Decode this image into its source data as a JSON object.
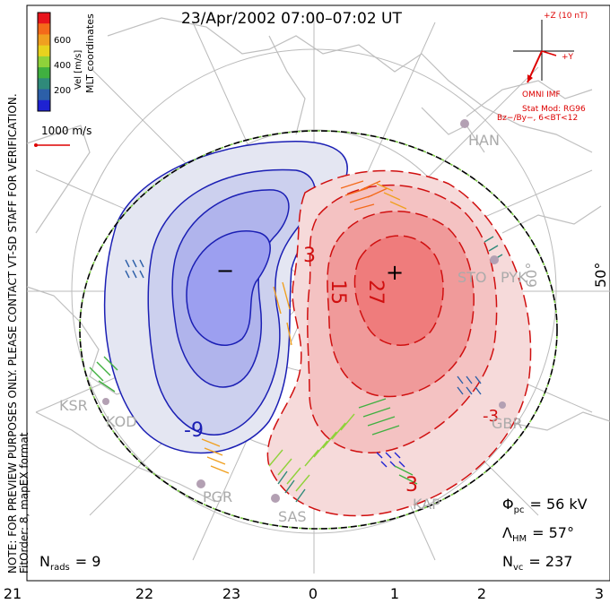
{
  "title": "23/Apr/2002 07:00–07:02 UT",
  "side_note": {
    "line1": "NOTE: FOR PREVIEW PURPOSES ONLY. PLEASE CONTACT VT-SD STAFF FOR VERIFICATION.",
    "line2": "FitOrder: 8, mapEX format"
  },
  "mlt_label": "MLT coordinates",
  "color_bar": {
    "label": "Vel [m/s]",
    "ticks": [
      "600",
      "400",
      "200"
    ],
    "colors": [
      "#e8141c",
      "#f46a1a",
      "#f0a020",
      "#e8d21e",
      "#8fd23a",
      "#40b040",
      "#2f8a7a",
      "#2c5fa8",
      "#1e22d2"
    ]
  },
  "velocity_scale": {
    "label": "1000 m/s"
  },
  "imf": {
    "scale_label": "+Z (10 nT)",
    "y_label": "+Y",
    "source": "OMNI IMF",
    "model_line1": "Stat Mod: RG96",
    "model_line2": "Bz−/By−, 6<BT<12"
  },
  "latitude_label": "50°",
  "latitude_label_2": "60°",
  "stations": [
    "HAN",
    "STO",
    "PYK",
    "KSR",
    "KOD",
    "PGR",
    "SAS",
    "KAP",
    "GBR"
  ],
  "contours": {
    "neg_labels": [
      "−",
      "-9"
    ],
    "pos_labels": [
      "+",
      "3",
      "15",
      "27",
      "3",
      "-3"
    ]
  },
  "stats": {
    "phi_sym": "Φ",
    "phi_sub": "pc",
    "phi_value": "= 56 kV",
    "lambda_sym": "Λ",
    "lambda_sub": "HM",
    "lambda_value": "= 57°",
    "nvc_sym": "N",
    "nvc_sub": "vc",
    "nvc_value": "= 237",
    "nrads_sym": "N",
    "nrads_sub": "rads",
    "nrads_value": "= 9"
  },
  "x_axis": [
    "21",
    "22",
    "23",
    "0",
    "1",
    "2",
    "3"
  ],
  "colors": {
    "neg_fill_outer": "#e4e6f2",
    "neg_fill_mid": "#ccd0ee",
    "neg_fill_inner": "#b0b4ec",
    "neg_fill_core": "#9c9ff0",
    "neg_line": "#1b1fb4",
    "pos_fill_outer": "#f6dada",
    "pos_fill_mid": "#f4c2c2",
    "pos_fill_inner": "#f09a9a",
    "pos_fill_core": "#ef7c7c",
    "pos_line": "#d01010",
    "boundary_green": "#7ac943",
    "grid": "#bbbbbb",
    "coast": "#bfbfbf"
  }
}
